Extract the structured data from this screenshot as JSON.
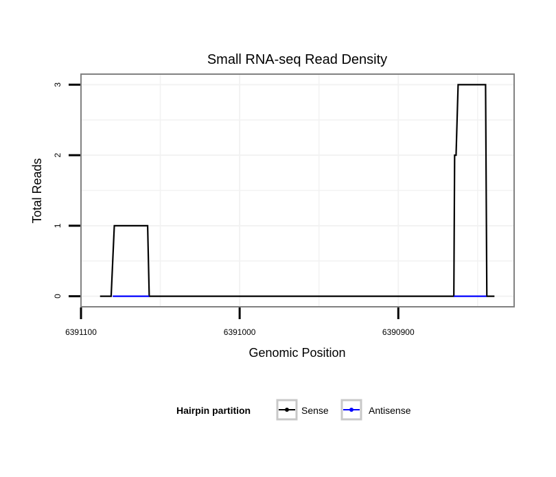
{
  "chart_data": {
    "type": "line",
    "title": "Small RNA-seq Read Density",
    "xlabel": "Genomic Position",
    "ylabel": "Total Reads",
    "xlim": [
      6391100,
      6390827
    ],
    "x_reversed": true,
    "ylim": [
      -0.15,
      3.15
    ],
    "xticks": [
      6391100,
      6391000,
      6390900
    ],
    "xtick_labels": [
      "6391100",
      "6391000",
      "6390900"
    ],
    "yticks": [
      0,
      1,
      2,
      3
    ],
    "ytick_labels": [
      "0",
      "1",
      "2",
      "3"
    ],
    "grid": true,
    "legend": {
      "title": "Hairpin partition",
      "placement": "bottom",
      "entries": [
        "Sense",
        "Antisense"
      ]
    },
    "series": [
      {
        "name": "Sense",
        "color": "#000000",
        "points": [
          [
            6391088,
            0
          ],
          [
            6391081,
            0
          ],
          [
            6391079,
            1
          ],
          [
            6391058,
            1
          ],
          [
            6391057,
            0
          ],
          [
            6390865,
            0
          ],
          [
            6390864.5,
            2
          ],
          [
            6390863.6,
            2
          ],
          [
            6390862.3,
            3
          ],
          [
            6390845,
            3
          ],
          [
            6390844.2,
            0
          ],
          [
            6390839.4,
            0
          ]
        ]
      },
      {
        "name": "Antisense",
        "color": "#0000ff",
        "segments": [
          [
            [
              6391080,
              0
            ],
            [
              6391057,
              0
            ]
          ],
          [
            [
              6390865,
              0
            ],
            [
              6390844.5,
              0
            ]
          ]
        ]
      }
    ]
  }
}
